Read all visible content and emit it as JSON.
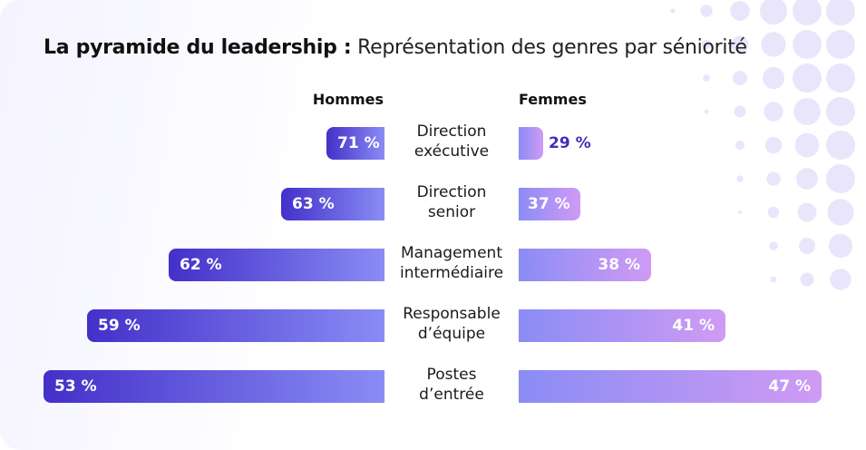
{
  "title": {
    "bold": "La pyramide du leadership :",
    "regular": "Représentation des genres par séniorité"
  },
  "chart_data": {
    "type": "bar",
    "orientation": "horizontal-butterfly",
    "categories": [
      [
        "Direction",
        "exécutive"
      ],
      [
        "Direction",
        "senior"
      ],
      [
        "Management",
        "intermédiaire"
      ],
      [
        "Responsable",
        "d’équipe"
      ],
      [
        "Postes",
        "d’entrée"
      ]
    ],
    "series": [
      {
        "name": "Hommes",
        "values": [
          71,
          63,
          62,
          59,
          53
        ],
        "labels": [
          "71 %",
          "63 %",
          "62 %",
          "59 %",
          "53 %"
        ]
      },
      {
        "name": "Femmes",
        "values": [
          29,
          37,
          38,
          41,
          47
        ],
        "labels": [
          "29 %",
          "37 %",
          "38 %",
          "41 %",
          "47 %"
        ]
      }
    ],
    "colors": {
      "men_start": "#4330c9",
      "men_end": "#8a8cf5",
      "women_start": "#8b8cf5",
      "women_end": "#cf9bf4",
      "label_outside": "#3d2fb8"
    }
  }
}
